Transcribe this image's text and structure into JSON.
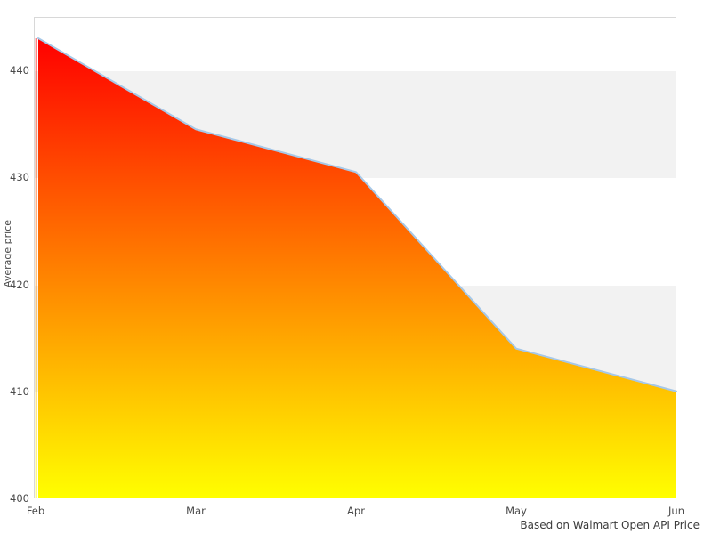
{
  "chart_data": {
    "type": "area",
    "categories": [
      "Feb",
      "Mar",
      "Apr",
      "May",
      "Jun"
    ],
    "values": [
      443,
      434.5,
      430.5,
      414,
      410
    ],
    "series_name": "Average price",
    "title": "",
    "xlabel": "",
    "ylabel": "Average price",
    "caption": "Based on Walmart Open API Price",
    "ylim": [
      400,
      445
    ],
    "yticks": [
      400,
      410,
      420,
      430,
      440
    ],
    "grid": "alternating horizontal bands, no gridlines",
    "legend": "none",
    "colors": {
      "gradient_top": "#ff0000",
      "gradient_bottom": "#ffff00",
      "line": "#a6c8e8",
      "band": "#f2f2f2",
      "plot_border": "#d8d8d8",
      "text": "#4a4a4a"
    }
  }
}
